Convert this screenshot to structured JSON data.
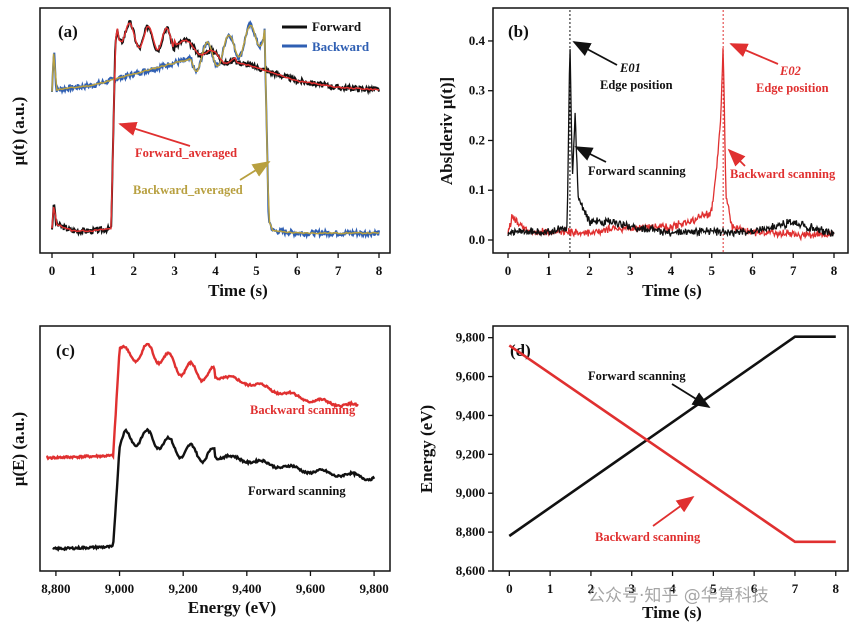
{
  "chart_data": [
    {
      "id": "a",
      "type": "line",
      "panel_label": "(a)",
      "xlabel": "Time (s)",
      "ylabel": "μ(t) (a.u.)",
      "xlim": [
        0,
        8
      ],
      "ylim": [
        0,
        1
      ],
      "xticks": [
        "0",
        "1",
        "2",
        "3",
        "4",
        "5",
        "6",
        "7",
        "8"
      ],
      "legend": [
        "Forward",
        "Backward"
      ],
      "annotations": [
        "Forward_averaged",
        "Backward_averaged"
      ],
      "colors": {
        "forward": "#111111",
        "backward": "#2f5fb3",
        "forward_avg": "#e03030",
        "backward_avg": "#b8a040"
      },
      "series": [
        {
          "name": "Forward",
          "x": [
            0,
            0.05,
            0.1,
            0.5,
            1.0,
            1.45,
            1.55,
            1.6,
            2.0,
            3.0,
            4.0,
            5.0,
            6.0,
            7.0,
            8.0
          ],
          "values": [
            0.06,
            0.18,
            0.08,
            0.05,
            0.05,
            0.06,
            0.9,
            0.95,
            0.92,
            0.9,
            0.83,
            0.78,
            0.72,
            0.69,
            0.68
          ]
        },
        {
          "name": "Backward",
          "x": [
            0,
            0.05,
            0.1,
            1.0,
            2.0,
            3.0,
            4.0,
            5.0,
            5.2,
            5.3,
            5.4,
            6.0,
            7.0,
            8.0
          ],
          "values": [
            0.67,
            0.88,
            0.68,
            0.7,
            0.75,
            0.8,
            0.84,
            0.92,
            0.95,
            0.1,
            0.05,
            0.04,
            0.04,
            0.04
          ]
        }
      ]
    },
    {
      "id": "b",
      "type": "line",
      "panel_label": "(b)",
      "xlabel": "Time (s)",
      "ylabel": "Abs[deriv μ(t)]",
      "xlim": [
        0,
        8
      ],
      "ylim": [
        0,
        0.42
      ],
      "xticks": [
        "0",
        "1",
        "2",
        "3",
        "4",
        "5",
        "6",
        "7",
        "8"
      ],
      "yticks": [
        "0.0",
        "0.1",
        "0.2",
        "0.3",
        "0.4"
      ],
      "annotations": {
        "e01": "E01",
        "e01_sub": "Edge position",
        "e02": "E02",
        "e02_sub": "Edge position",
        "forward": "Forward scanning",
        "backward": "Backward scanning"
      },
      "vlines": [
        1.52,
        5.28
      ],
      "series": [
        {
          "name": "Forward scanning",
          "x": [
            0,
            0.5,
            1.0,
            1.45,
            1.52,
            1.58,
            1.65,
            1.72,
            2.0,
            2.5,
            3.0,
            4.0,
            5.0,
            6.0,
            7.0,
            8.0
          ],
          "values": [
            0.01,
            0.01,
            0.01,
            0.02,
            0.39,
            0.12,
            0.25,
            0.08,
            0.03,
            0.03,
            0.02,
            0.01,
            0.01,
            0.01,
            0.03,
            0.005
          ]
        },
        {
          "name": "Backward scanning",
          "x": [
            0,
            0.1,
            0.5,
            1.0,
            2.0,
            3.0,
            4.0,
            4.5,
            5.0,
            5.15,
            5.22,
            5.28,
            5.35,
            5.5,
            6.0,
            7.0,
            8.0
          ],
          "values": [
            0.01,
            0.04,
            0.01,
            0.01,
            0.01,
            0.02,
            0.02,
            0.03,
            0.05,
            0.16,
            0.24,
            0.38,
            0.08,
            0.02,
            0.01,
            0.005,
            0.005
          ]
        }
      ]
    },
    {
      "id": "c",
      "type": "line",
      "panel_label": "(c)",
      "xlabel": "Energy (eV)",
      "ylabel": "μ(E) (a.u.)",
      "xlim": [
        8750,
        9850
      ],
      "ylim": [
        0,
        1
      ],
      "xticks": [
        "8,800",
        "9,000",
        "9,200",
        "9,400",
        "9,600",
        "9,800"
      ],
      "annotations": [
        "Backward scanning",
        "Forward scanning"
      ],
      "series": [
        {
          "name": "Backward scanning",
          "x": [
            8770,
            8980,
            9000,
            9020,
            9100,
            9200,
            9400,
            9600,
            9750
          ],
          "values": [
            0.46,
            0.47,
            0.95,
            0.92,
            0.94,
            0.86,
            0.8,
            0.72,
            0.69
          ]
        },
        {
          "name": "Forward scanning",
          "x": [
            8790,
            8980,
            9000,
            9020,
            9100,
            9200,
            9400,
            9600,
            9800
          ],
          "values": [
            0.05,
            0.06,
            0.51,
            0.55,
            0.55,
            0.49,
            0.45,
            0.4,
            0.37
          ]
        }
      ]
    },
    {
      "id": "d",
      "type": "line",
      "panel_label": "(d)",
      "xlabel": "Time (s)",
      "ylabel": "Energy (eV)",
      "xlim": [
        -0.4,
        8.3
      ],
      "ylim": [
        8600,
        9860
      ],
      "xticks": [
        "0",
        "1",
        "2",
        "3",
        "4",
        "5",
        "6",
        "7",
        "8"
      ],
      "yticks": [
        "8,600",
        "8,800",
        "9,000",
        "9,200",
        "9,400",
        "9,600",
        "9,800"
      ],
      "annotations": [
        "Forward scanning",
        "Backward scanning"
      ],
      "series": [
        {
          "name": "Forward scanning",
          "x": [
            0,
            7,
            8
          ],
          "values": [
            8780,
            9805,
            9805
          ]
        },
        {
          "name": "Backward scanning",
          "x": [
            0,
            7,
            8
          ],
          "values": [
            9760,
            8750,
            8750
          ]
        }
      ]
    }
  ],
  "watermark": "公众号·知乎 @华算科技"
}
